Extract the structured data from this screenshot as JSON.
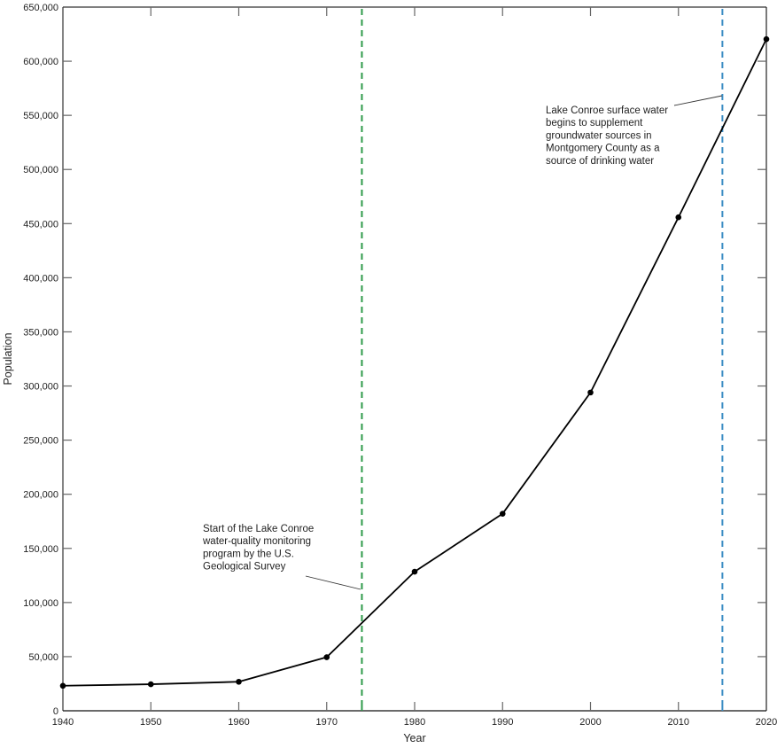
{
  "chart_data": {
    "type": "line",
    "title": "",
    "xlabel": "Year",
    "ylabel": "Population",
    "xlim": [
      1940,
      2020
    ],
    "ylim": [
      0,
      650000
    ],
    "grid": false,
    "legend": null,
    "x_ticks": [
      1940,
      1950,
      1960,
      1970,
      1980,
      1990,
      2000,
      2010,
      2020
    ],
    "x_tick_labels": [
      "1940",
      "1950",
      "1960",
      "1970",
      "1980",
      "1990",
      "2000",
      "2010",
      "2020"
    ],
    "y_ticks": [
      0,
      50000,
      100000,
      150000,
      200000,
      250000,
      300000,
      350000,
      400000,
      450000,
      500000,
      550000,
      600000,
      650000
    ],
    "y_tick_labels": [
      "0",
      "50,000",
      "100,000",
      "150,000",
      "200,000",
      "250,000",
      "300,000",
      "350,000",
      "400,000",
      "450,000",
      "500,000",
      "550,000",
      "600,000",
      "650,000"
    ],
    "series": [
      {
        "name": "Population",
        "color": "#000000",
        "marker": "circle",
        "x": [
          1940,
          1950,
          1960,
          1970,
          1980,
          1990,
          2000,
          2010,
          2020
        ],
        "values": [
          23100,
          24500,
          26800,
          49500,
          128500,
          182000,
          294000,
          455800,
          620400
        ]
      }
    ],
    "reference_lines": [
      {
        "x": 1974,
        "color": "#2e9a4a",
        "style": "dashed",
        "annotation": [
          "Start of the Lake Conroe",
          "water-quality monitoring",
          "program by the U.S.",
          "Geological Survey"
        ]
      },
      {
        "x": 2015,
        "color": "#3a8cc4",
        "style": "dashed",
        "annotation": [
          "Lake Conroe surface water",
          "begins to supplement",
          "groundwater sources in",
          "Montgomery County as a",
          "source of drinking water"
        ]
      }
    ]
  }
}
